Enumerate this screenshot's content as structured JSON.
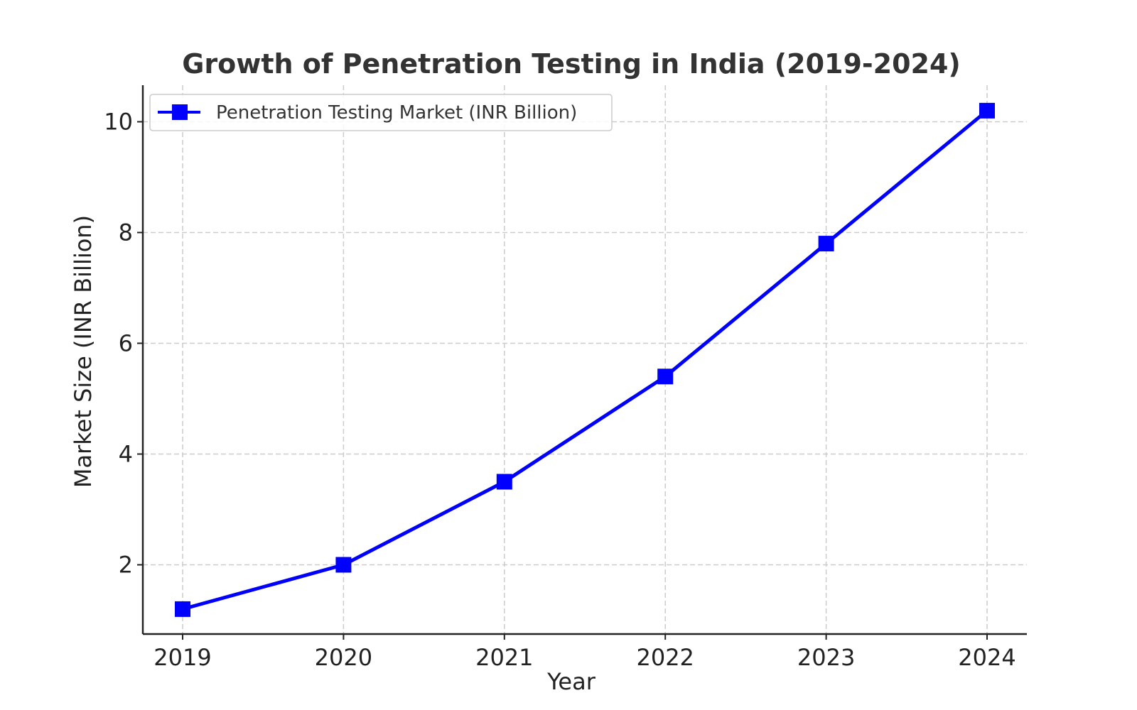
{
  "chart_data": {
    "type": "line",
    "title": "Growth of Penetration Testing in India (2019-2024)",
    "xlabel": "Year",
    "ylabel": "Market Size (INR Billion)",
    "categories": [
      "2019",
      "2020",
      "2021",
      "2022",
      "2023",
      "2024"
    ],
    "series": [
      {
        "name": "Penetration Testing Market (INR Billion)",
        "values": [
          1.2,
          2.0,
          3.5,
          5.4,
          7.8,
          10.2
        ],
        "color": "#0000ff",
        "marker": "square"
      }
    ],
    "yticks": [
      2,
      4,
      6,
      8,
      10
    ],
    "ylim": [
      0.75,
      10.66
    ],
    "grid": true,
    "legend": "top-left"
  }
}
